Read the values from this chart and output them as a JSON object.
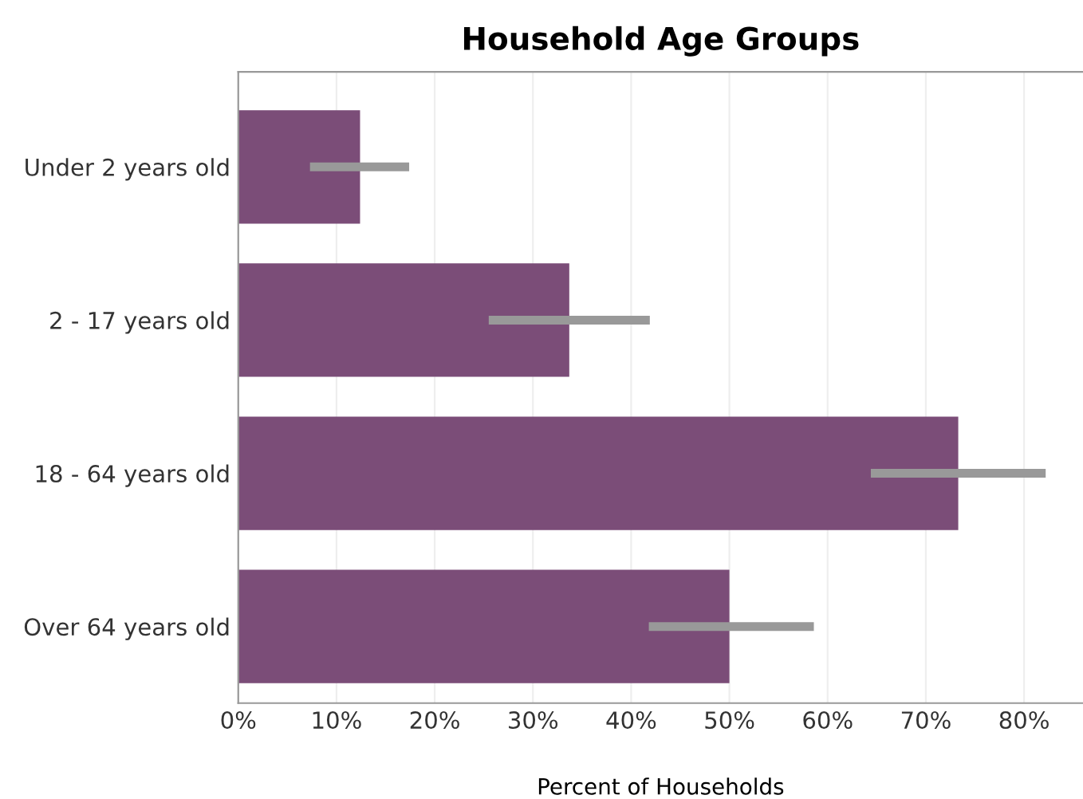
{
  "chart_data": {
    "type": "bar",
    "orientation": "horizontal",
    "title": "Household Age Groups",
    "xlabel": "Percent of Households",
    "categories": [
      "Under 2 years old",
      "2 - 17 years old",
      "18 - 64 years old",
      "Over 64 years old"
    ],
    "values": [
      12.4,
      33.7,
      73.3,
      50.0
    ],
    "errors": [
      [
        7.3,
        17.4
      ],
      [
        25.5,
        41.9
      ],
      [
        64.4,
        82.2
      ],
      [
        41.8,
        58.6
      ]
    ],
    "color": "#7b4d78",
    "xlim": [
      0,
      86
    ],
    "xticks": [
      {
        "value": 0,
        "label": "0%"
      },
      {
        "value": 10,
        "label": "10%"
      },
      {
        "value": 20,
        "label": "20%"
      },
      {
        "value": 30,
        "label": "30%"
      },
      {
        "value": 40,
        "label": "40%"
      },
      {
        "value": 50,
        "label": "50%"
      },
      {
        "value": 60,
        "label": "60%"
      },
      {
        "value": 70,
        "label": "70%"
      },
      {
        "value": 80,
        "label": "80%"
      }
    ],
    "grid": "x"
  }
}
